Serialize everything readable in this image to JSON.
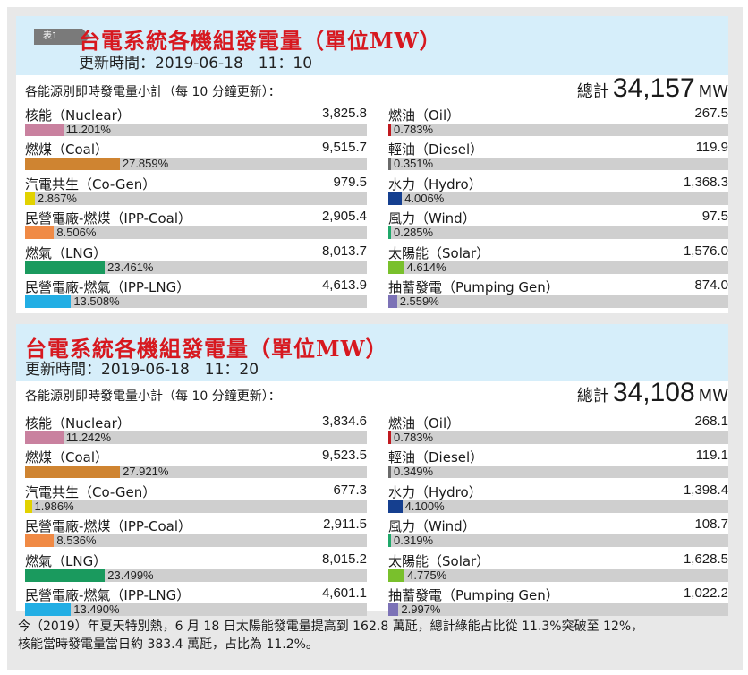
{
  "badge": "表1",
  "chart_data": [
    {
      "type": "bar",
      "title": "台電系統各機組發電量（單位MW）",
      "updated": "更新時間：2019-06-18　11：10",
      "subtitle": "各能源別即時發電量小計（每 10 分鐘更新）：",
      "total_label": "總計",
      "total_value": "34,157",
      "total_unit": "MW",
      "left": [
        {
          "name": "核能（Nuclear）",
          "value": "3,825.8",
          "percent_label": "11.201%",
          "percent": 11.201,
          "color": "#c9819f"
        },
        {
          "name": "燃煤（Coal）",
          "value": "9,515.7",
          "percent_label": "27.859%",
          "percent": 27.859,
          "color": "#cf8431"
        },
        {
          "name": "汽電共生（Co-Gen）",
          "value": "979.5",
          "percent_label": "2.867%",
          "percent": 2.867,
          "color": "#e2d200"
        },
        {
          "name": "民營電廠-燃煤（IPP-Coal）",
          "value": "2,905.4",
          "percent_label": "8.506%",
          "percent": 8.506,
          "color": "#f08a45"
        },
        {
          "name": "燃氣（LNG）",
          "value": "8,013.7",
          "percent_label": "23.461%",
          "percent": 23.461,
          "color": "#1a9a5e"
        },
        {
          "name": "民營電廠-燃氣（IPP-LNG）",
          "value": "4,613.9",
          "percent_label": "13.508%",
          "percent": 13.508,
          "color": "#22aee4"
        }
      ],
      "right": [
        {
          "name": "燃油（Oil）",
          "value": "267.5",
          "percent_label": "0.783%",
          "percent": 0.783,
          "color": "#c0191f"
        },
        {
          "name": "輕油（Diesel）",
          "value": "119.9",
          "percent_label": "0.351%",
          "percent": 0.351,
          "color": "#6a6a6a"
        },
        {
          "name": "水力（Hydro）",
          "value": "1,368.3",
          "percent_label": "4.006%",
          "percent": 4.006,
          "color": "#153f8f"
        },
        {
          "name": "風力（Wind）",
          "value": "97.5",
          "percent_label": "0.285%",
          "percent": 0.285,
          "color": "#1fa86a"
        },
        {
          "name": "太陽能（Solar）",
          "value": "1,576.0",
          "percent_label": "4.614%",
          "percent": 4.614,
          "color": "#79c02c"
        },
        {
          "name": "抽蓄發電（Pumping Gen）",
          "value": "874.0",
          "percent_label": "2.559%",
          "percent": 2.559,
          "color": "#7c72b6"
        }
      ]
    },
    {
      "type": "bar",
      "title": "台電系統各機組發電量（單位MW）",
      "updated": "更新時間：2019-06-18　11：20",
      "subtitle": "各能源別即時發電量小計（每 10 分鐘更新）：",
      "total_label": "總計",
      "total_value": "34,108",
      "total_unit": "MW",
      "left": [
        {
          "name": "核能（Nuclear）",
          "value": "3,834.6",
          "percent_label": "11.242%",
          "percent": 11.242,
          "color": "#c9819f"
        },
        {
          "name": "燃煤（Coal）",
          "value": "9,523.5",
          "percent_label": "27.921%",
          "percent": 27.921,
          "color": "#cf8431"
        },
        {
          "name": "汽電共生（Co-Gen）",
          "value": "677.3",
          "percent_label": "1.986%",
          "percent": 1.986,
          "color": "#e2d200"
        },
        {
          "name": "民營電廠-燃煤（IPP-Coal）",
          "value": "2,911.5",
          "percent_label": "8.536%",
          "percent": 8.536,
          "color": "#f08a45"
        },
        {
          "name": "燃氣（LNG）",
          "value": "8,015.2",
          "percent_label": "23.499%",
          "percent": 23.499,
          "color": "#1a9a5e"
        },
        {
          "name": "民營電廠-燃氣（IPP-LNG）",
          "value": "4,601.1",
          "percent_label": "13.490%",
          "percent": 13.49,
          "color": "#22aee4"
        }
      ],
      "right": [
        {
          "name": "燃油（Oil）",
          "value": "268.1",
          "percent_label": "0.783%",
          "percent": 0.783,
          "color": "#c0191f"
        },
        {
          "name": "輕油（Diesel）",
          "value": "119.1",
          "percent_label": "0.349%",
          "percent": 0.349,
          "color": "#6a6a6a"
        },
        {
          "name": "水力（Hydro）",
          "value": "1,398.4",
          "percent_label": "4.100%",
          "percent": 4.1,
          "color": "#153f8f"
        },
        {
          "name": "風力（Wind）",
          "value": "108.7",
          "percent_label": "0.319%",
          "percent": 0.319,
          "color": "#1fa86a"
        },
        {
          "name": "太陽能（Solar）",
          "value": "1,628.5",
          "percent_label": "4.775%",
          "percent": 4.775,
          "color": "#79c02c"
        },
        {
          "name": "抽蓄發電（Pumping Gen）",
          "value": "1,022.2",
          "percent_label": "2.997%",
          "percent": 2.997,
          "color": "#7c72b6"
        }
      ]
    }
  ],
  "footnote": [
    "今（2019）年夏天特別熱，6 月 18 日太陽能發電量提高到 162.8 萬瓩，總計綠能占比從 11.3%突破至 12%，",
    "核能當時發電量當日約 383.4 萬瓩，占比為 11.2%。"
  ]
}
